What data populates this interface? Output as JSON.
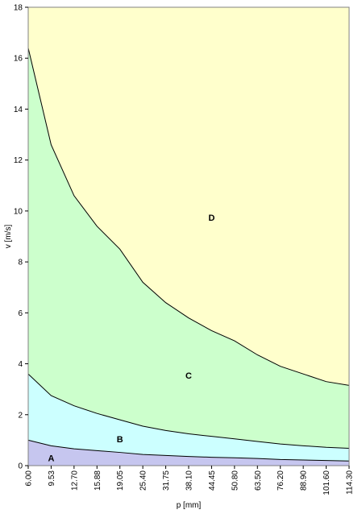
{
  "chart_data": {
    "type": "area",
    "xlabel": "p [mm]",
    "ylabel": "v [m/s]",
    "ylim": [
      0,
      18
    ],
    "yticks": [
      0,
      2,
      4,
      6,
      8,
      10,
      12,
      14,
      16,
      18
    ],
    "grid": false,
    "categories": [
      "6.00",
      "9.53",
      "12.70",
      "15.88",
      "19.05",
      "25.40",
      "31.75",
      "38.10",
      "44.45",
      "50.80",
      "63.50",
      "76.20",
      "88.90",
      "101.60",
      "114.30"
    ],
    "boundaries": [
      {
        "between": [
          "A",
          "B"
        ],
        "values": [
          1.0,
          0.78,
          0.66,
          0.59,
          0.52,
          0.44,
          0.4,
          0.36,
          0.33,
          0.31,
          0.28,
          0.24,
          0.22,
          0.2,
          0.18
        ]
      },
      {
        "between": [
          "B",
          "C"
        ],
        "values": [
          3.6,
          2.75,
          2.35,
          2.05,
          1.8,
          1.55,
          1.38,
          1.25,
          1.15,
          1.05,
          0.95,
          0.85,
          0.78,
          0.72,
          0.68
        ]
      },
      {
        "between": [
          "C",
          "D"
        ],
        "values": [
          16.4,
          12.6,
          10.6,
          9.4,
          8.5,
          7.2,
          6.4,
          5.8,
          5.3,
          4.9,
          4.35,
          3.9,
          3.6,
          3.3,
          3.15
        ]
      }
    ],
    "regions": [
      {
        "label": "A",
        "color": "#c6c6ef",
        "label_at": {
          "category": "9.53",
          "value": 0.3
        }
      },
      {
        "label": "B",
        "color": "#ccffff",
        "label_at": {
          "category": "19.05",
          "value": 1.05
        }
      },
      {
        "label": "C",
        "color": "#ccffcc",
        "label_at": {
          "category": "38.10",
          "value": 3.55
        }
      },
      {
        "label": "D",
        "color": "#ffffcc",
        "label_at": {
          "category": "44.45",
          "value": 9.75
        }
      }
    ]
  }
}
